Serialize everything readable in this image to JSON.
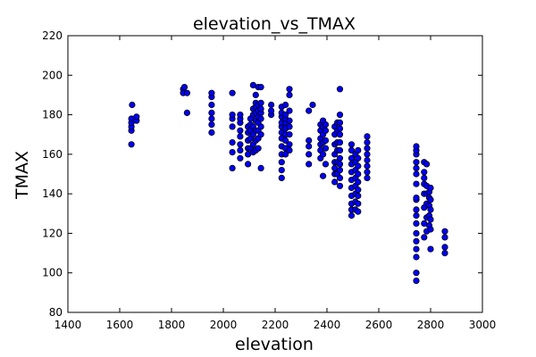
{
  "chart_data": {
    "type": "scatter",
    "title": "elevation_vs_TMAX",
    "xlabel": "elevation",
    "ylabel": "TMAX",
    "xlim": [
      1400,
      3000
    ],
    "ylim": [
      80,
      220
    ],
    "xticks": [
      1400,
      1600,
      1800,
      2000,
      2200,
      2400,
      2600,
      2800,
      3000
    ],
    "yticks": [
      80,
      100,
      120,
      140,
      160,
      180,
      200,
      220
    ],
    "grid": false,
    "marker_color": "#0000ff",
    "marker_edge": "#000000",
    "series": [
      {
        "points": [
          [
            1645,
            165
          ],
          [
            1645,
            172
          ],
          [
            1645,
            174
          ],
          [
            1645,
            176
          ],
          [
            1645,
            178
          ],
          [
            1648,
            185
          ],
          [
            1665,
            177
          ],
          [
            1665,
            179
          ],
          [
            1845,
            193
          ],
          [
            1845,
            191
          ],
          [
            1850,
            194
          ],
          [
            1860,
            181
          ],
          [
            1860,
            191
          ],
          [
            1955,
            171
          ],
          [
            1955,
            175
          ],
          [
            1955,
            178
          ],
          [
            1955,
            181
          ],
          [
            1955,
            185
          ],
          [
            1955,
            189
          ],
          [
            1955,
            191
          ],
          [
            2035,
            153
          ],
          [
            2035,
            161
          ],
          [
            2035,
            166
          ],
          [
            2035,
            174
          ],
          [
            2035,
            178
          ],
          [
            2035,
            180
          ],
          [
            2035,
            191
          ],
          [
            2065,
            158
          ],
          [
            2065,
            162
          ],
          [
            2065,
            165
          ],
          [
            2065,
            169
          ],
          [
            2065,
            172
          ],
          [
            2065,
            176
          ],
          [
            2065,
            178
          ],
          [
            2065,
            180
          ],
          [
            2095,
            155
          ],
          [
            2095,
            160
          ],
          [
            2095,
            163
          ],
          [
            2095,
            167
          ],
          [
            2095,
            171
          ],
          [
            2095,
            174
          ],
          [
            2105,
            163
          ],
          [
            2105,
            168
          ],
          [
            2105,
            172
          ],
          [
            2105,
            175
          ],
          [
            2105,
            178
          ],
          [
            2115,
            161
          ],
          [
            2115,
            165
          ],
          [
            2115,
            170
          ],
          [
            2115,
            174
          ],
          [
            2115,
            180
          ],
          [
            2115,
            183
          ],
          [
            2115,
            195
          ],
          [
            2125,
            162
          ],
          [
            2125,
            167
          ],
          [
            2125,
            172
          ],
          [
            2125,
            177
          ],
          [
            2125,
            181
          ],
          [
            2125,
            184
          ],
          [
            2125,
            186
          ],
          [
            2125,
            190
          ],
          [
            2135,
            163
          ],
          [
            2135,
            168
          ],
          [
            2135,
            172
          ],
          [
            2135,
            176
          ],
          [
            2135,
            179
          ],
          [
            2135,
            182
          ],
          [
            2135,
            185
          ],
          [
            2135,
            194
          ],
          [
            2145,
            153
          ],
          [
            2145,
            170
          ],
          [
            2145,
            174
          ],
          [
            2145,
            178
          ],
          [
            2145,
            181
          ],
          [
            2145,
            183
          ],
          [
            2145,
            186
          ],
          [
            2145,
            194
          ],
          [
            2185,
            180
          ],
          [
            2185,
            182
          ],
          [
            2185,
            185
          ],
          [
            2225,
            148
          ],
          [
            2225,
            152
          ],
          [
            2225,
            156
          ],
          [
            2225,
            160
          ],
          [
            2225,
            164
          ],
          [
            2225,
            168
          ],
          [
            2225,
            171
          ],
          [
            2225,
            174
          ],
          [
            2225,
            176
          ],
          [
            2225,
            179
          ],
          [
            2225,
            181
          ],
          [
            2225,
            184
          ],
          [
            2240,
            160
          ],
          [
            2240,
            163
          ],
          [
            2240,
            167
          ],
          [
            2240,
            170
          ],
          [
            2240,
            173
          ],
          [
            2240,
            176
          ],
          [
            2240,
            178
          ],
          [
            2240,
            180
          ],
          [
            2240,
            185
          ],
          [
            2255,
            162
          ],
          [
            2255,
            165
          ],
          [
            2255,
            170
          ],
          [
            2255,
            174
          ],
          [
            2255,
            177
          ],
          [
            2255,
            182
          ],
          [
            2255,
            190
          ],
          [
            2255,
            193
          ],
          [
            2330,
            155
          ],
          [
            2330,
            160
          ],
          [
            2330,
            164
          ],
          [
            2330,
            167
          ],
          [
            2330,
            182
          ],
          [
            2345,
            185
          ],
          [
            2375,
            158
          ],
          [
            2375,
            162
          ],
          [
            2375,
            165
          ],
          [
            2375,
            168
          ],
          [
            2375,
            172
          ],
          [
            2375,
            175
          ],
          [
            2385,
            149
          ],
          [
            2385,
            160
          ],
          [
            2385,
            166
          ],
          [
            2385,
            170
          ],
          [
            2385,
            174
          ],
          [
            2385,
            177
          ],
          [
            2395,
            155
          ],
          [
            2395,
            163
          ],
          [
            2395,
            167
          ],
          [
            2395,
            172
          ],
          [
            2395,
            175
          ],
          [
            2430,
            146
          ],
          [
            2430,
            150
          ],
          [
            2430,
            153
          ],
          [
            2430,
            156
          ],
          [
            2430,
            160
          ],
          [
            2430,
            165
          ],
          [
            2430,
            170
          ],
          [
            2430,
            174
          ],
          [
            2440,
            150
          ],
          [
            2440,
            156
          ],
          [
            2440,
            162
          ],
          [
            2440,
            166
          ],
          [
            2440,
            172
          ],
          [
            2440,
            176
          ],
          [
            2450,
            144
          ],
          [
            2450,
            148
          ],
          [
            2450,
            152
          ],
          [
            2450,
            155
          ],
          [
            2450,
            158
          ],
          [
            2450,
            162
          ],
          [
            2450,
            166
          ],
          [
            2450,
            170
          ],
          [
            2450,
            173
          ],
          [
            2450,
            176
          ],
          [
            2450,
            180
          ],
          [
            2450,
            193
          ],
          [
            2495,
            129
          ],
          [
            2495,
            132
          ],
          [
            2495,
            135
          ],
          [
            2495,
            139
          ],
          [
            2495,
            143
          ],
          [
            2495,
            147
          ],
          [
            2495,
            151
          ],
          [
            2495,
            155
          ],
          [
            2495,
            158
          ],
          [
            2495,
            162
          ],
          [
            2495,
            165
          ],
          [
            2510,
            132
          ],
          [
            2510,
            136
          ],
          [
            2510,
            140
          ],
          [
            2510,
            144
          ],
          [
            2510,
            148
          ],
          [
            2510,
            152
          ],
          [
            2510,
            156
          ],
          [
            2510,
            160
          ],
          [
            2520,
            131
          ],
          [
            2520,
            135
          ],
          [
            2520,
            139
          ],
          [
            2520,
            142
          ],
          [
            2520,
            146
          ],
          [
            2520,
            150
          ],
          [
            2520,
            154
          ],
          [
            2520,
            158
          ],
          [
            2520,
            162
          ],
          [
            2555,
            148
          ],
          [
            2555,
            151
          ],
          [
            2555,
            154
          ],
          [
            2555,
            157
          ],
          [
            2555,
            160
          ],
          [
            2555,
            163
          ],
          [
            2555,
            166
          ],
          [
            2555,
            169
          ],
          [
            2745,
            96
          ],
          [
            2745,
            100
          ],
          [
            2745,
            108
          ],
          [
            2745,
            112
          ],
          [
            2745,
            116
          ],
          [
            2745,
            120
          ],
          [
            2745,
            125
          ],
          [
            2745,
            129
          ],
          [
            2745,
            132
          ],
          [
            2745,
            137
          ],
          [
            2745,
            138
          ],
          [
            2745,
            145
          ],
          [
            2745,
            150
          ],
          [
            2745,
            153
          ],
          [
            2745,
            156
          ],
          [
            2745,
            160
          ],
          [
            2745,
            162
          ],
          [
            2745,
            164
          ],
          [
            2775,
            118
          ],
          [
            2775,
            125
          ],
          [
            2775,
            133
          ],
          [
            2775,
            140
          ],
          [
            2775,
            145
          ],
          [
            2775,
            148
          ],
          [
            2775,
            151
          ],
          [
            2775,
            156
          ],
          [
            2785,
            121
          ],
          [
            2785,
            128
          ],
          [
            2785,
            135
          ],
          [
            2785,
            140
          ],
          [
            2785,
            144
          ],
          [
            2785,
            155
          ],
          [
            2795,
            124
          ],
          [
            2795,
            129
          ],
          [
            2795,
            134
          ],
          [
            2795,
            138
          ],
          [
            2795,
            141
          ],
          [
            2800,
            112
          ],
          [
            2800,
            122
          ],
          [
            2800,
            127
          ],
          [
            2800,
            132
          ],
          [
            2800,
            137
          ],
          [
            2800,
            143
          ],
          [
            2855,
            110
          ],
          [
            2855,
            113
          ],
          [
            2855,
            118
          ],
          [
            2855,
            121
          ]
        ]
      }
    ]
  }
}
